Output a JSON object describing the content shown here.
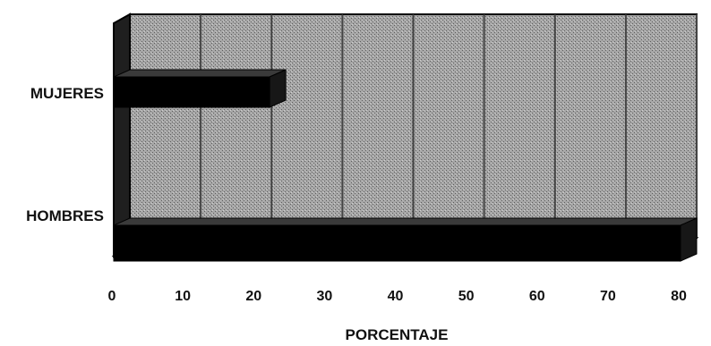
{
  "chart_data": {
    "type": "bar",
    "orientation": "horizontal",
    "categories": [
      "MUJERES",
      "HOMBRES"
    ],
    "values": [
      22,
      80
    ],
    "xlabel": "PORCENTAJE",
    "ylabel": "",
    "xlim": [
      0,
      80
    ],
    "xticks": [
      "0",
      "10",
      "20",
      "30",
      "40",
      "50",
      "60",
      "70",
      "80"
    ],
    "grid": true,
    "legend": "none",
    "style": "3d",
    "colors": {
      "bar": "#000000",
      "background": "#ffffff",
      "plot_area": "#9d9d9d",
      "grid": "#444444",
      "frame": "#000000"
    }
  }
}
